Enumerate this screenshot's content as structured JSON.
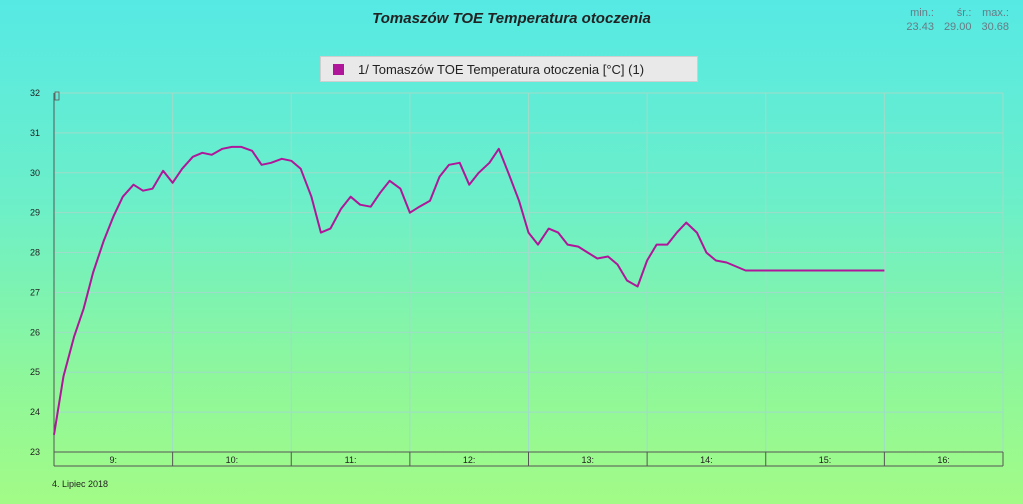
{
  "chart_data": {
    "type": "line",
    "title": "Tomaszów TOE Temperatura otoczenia",
    "stats": {
      "min_label": "min.:",
      "min_value": "23.43",
      "avg_label": "śr.:",
      "avg_value": "29.00",
      "max_label": "max.:",
      "max_value": "30.68"
    },
    "legend": "1/ Tomaszów TOE Temperatura otoczenia [°C] (1)",
    "date_label": "4. Lipiec 2018",
    "ylim": [
      23,
      32
    ],
    "xlim": [
      8.5,
      16.5
    ],
    "y_ticks": [
      "32",
      "31",
      "30",
      "29",
      "28",
      "27",
      "26",
      "25",
      "24",
      "23"
    ],
    "x_ticks": [
      "9:",
      "10:",
      "11:",
      "12:",
      "13:",
      "14:",
      "15:",
      "16:"
    ],
    "grid": true,
    "series": [
      {
        "name": "1/ Tomaszów TOE Temperatura otoczenia [°C] (1)",
        "color": "#b0169a",
        "x": [
          8.5,
          8.58,
          8.67,
          8.75,
          8.83,
          8.92,
          9.0,
          9.08,
          9.17,
          9.25,
          9.33,
          9.42,
          9.5,
          9.58,
          9.67,
          9.75,
          9.83,
          9.92,
          10.0,
          10.08,
          10.17,
          10.25,
          10.33,
          10.42,
          10.5,
          10.58,
          10.67,
          10.75,
          10.83,
          10.92,
          11.0,
          11.08,
          11.17,
          11.25,
          11.33,
          11.42,
          11.5,
          11.58,
          11.67,
          11.75,
          11.83,
          11.92,
          12.0,
          12.08,
          12.17,
          12.25,
          12.33,
          12.42,
          12.5,
          12.58,
          12.67,
          12.75,
          12.83,
          12.92,
          13.0,
          13.08,
          13.17,
          13.25,
          13.33,
          13.42,
          13.5,
          13.58,
          13.67,
          13.75,
          13.83,
          13.92,
          14.0,
          14.08,
          14.17,
          14.25,
          14.33,
          14.42,
          14.5,
          14.58,
          14.67,
          14.75,
          14.83,
          14.92,
          15.0,
          15.08,
          15.17,
          15.25,
          15.33,
          15.42,
          15.5
        ],
        "values": [
          23.43,
          24.9,
          25.9,
          26.6,
          27.5,
          28.3,
          28.9,
          29.4,
          29.7,
          29.55,
          29.6,
          30.05,
          29.75,
          30.1,
          30.4,
          30.5,
          30.45,
          30.6,
          30.65,
          30.65,
          30.55,
          30.2,
          30.25,
          30.35,
          30.3,
          30.1,
          29.4,
          28.5,
          28.6,
          29.1,
          29.4,
          29.2,
          29.15,
          29.5,
          29.8,
          29.6,
          29.0,
          29.15,
          29.3,
          29.9,
          30.2,
          30.25,
          29.7,
          30.0,
          30.25,
          30.6,
          30.0,
          29.3,
          28.5,
          28.2,
          28.6,
          28.5,
          28.2,
          28.15,
          28.0,
          27.85,
          27.9,
          27.7,
          27.3,
          27.15,
          27.8,
          28.2,
          28.2,
          28.5,
          28.75,
          28.5,
          28.0,
          27.8,
          27.75,
          27.65,
          27.55,
          27.55,
          27.55,
          27.55,
          27.55,
          27.55,
          27.55,
          27.55,
          27.55,
          27.55,
          27.55,
          27.55,
          27.55,
          27.55,
          27.55
        ]
      }
    ]
  }
}
